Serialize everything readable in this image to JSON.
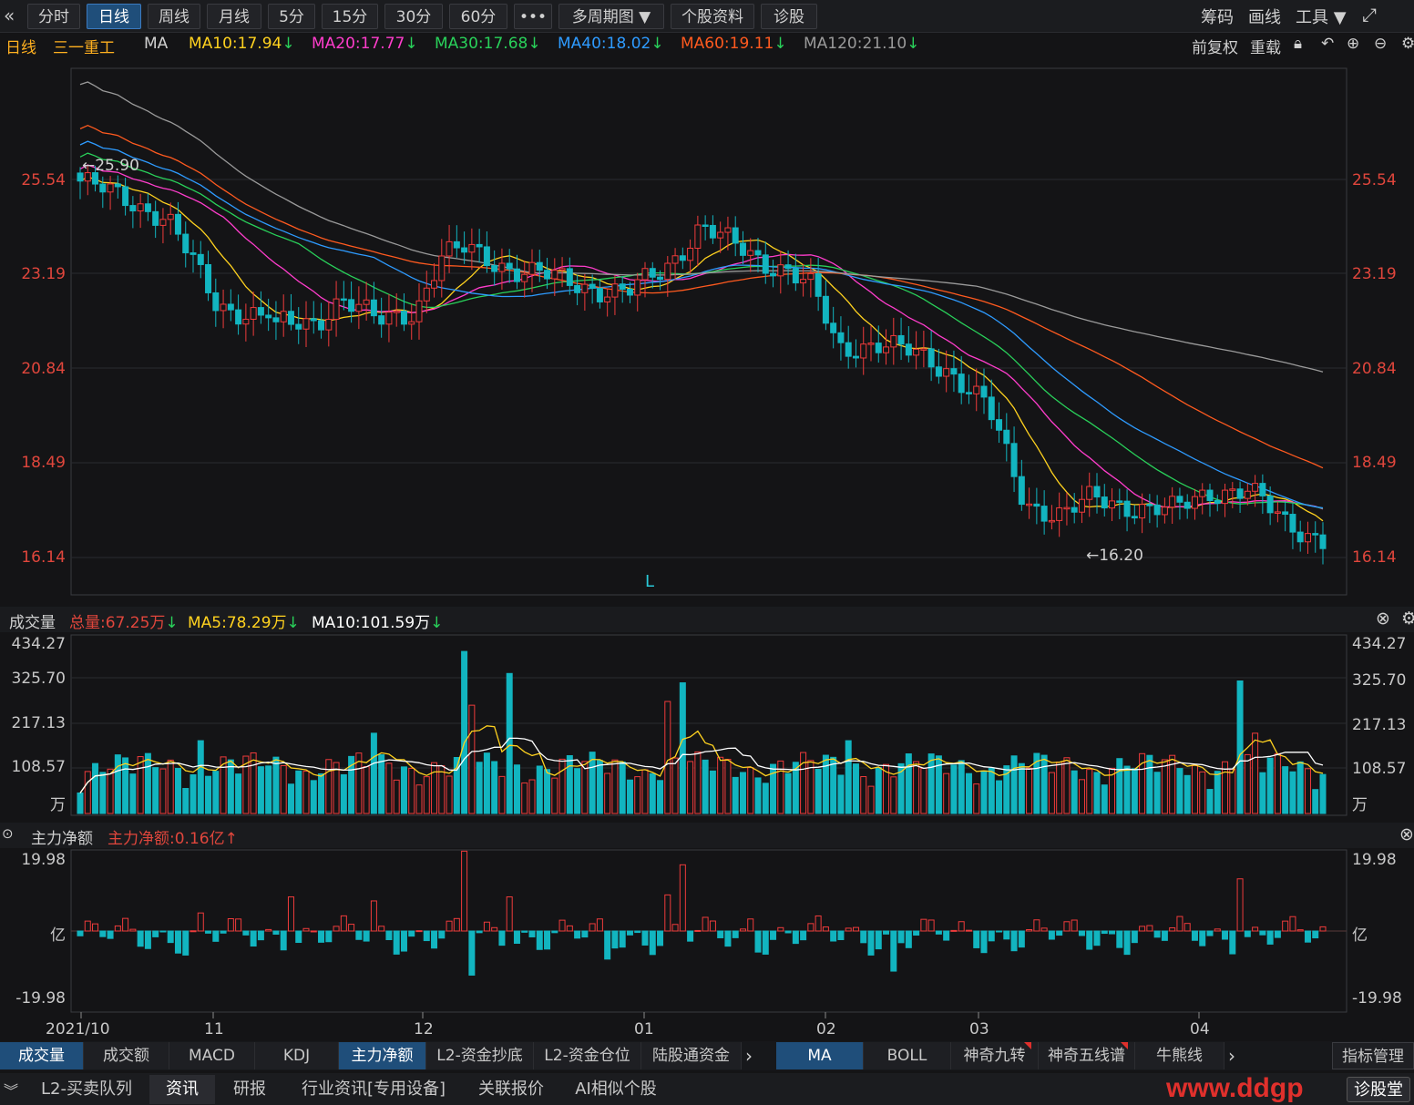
{
  "toolbar": {
    "back_icon": "double-chevron-left-icon",
    "tabs": [
      "分时",
      "日线",
      "周线",
      "月线",
      "5分",
      "15分",
      "30分",
      "60分",
      "•••",
      "多周期图 ▼",
      "个股资料",
      "诊股"
    ],
    "active_tab": "日线",
    "right_items": [
      "筹码",
      "画线",
      "工具 ▼"
    ],
    "expand_icon": "fullscreen-icon"
  },
  "ma_legend": {
    "period": "日线",
    "stock_name": "三一重工",
    "indicator": "MA",
    "items": [
      {
        "label": "MA10:17.94",
        "color": "#ffd21f",
        "arrow": "↓"
      },
      {
        "label": "MA20:17.77",
        "color": "#ff3dcc",
        "arrow": "↓"
      },
      {
        "label": "MA30:17.68",
        "color": "#29d15a",
        "arrow": "↓"
      },
      {
        "label": "MA40:18.02",
        "color": "#2e9bff",
        "arrow": "↓"
      },
      {
        "label": "MA60:19.11",
        "color": "#ff5a1f",
        "arrow": "↓"
      },
      {
        "label": "MA120:21.10",
        "color": "#9a9a9a",
        "arrow": "↓"
      }
    ],
    "right": [
      "前复权",
      "重载"
    ]
  },
  "price_axis": {
    "ticks": [
      "25.54",
      "23.19",
      "20.84",
      "18.49",
      "16.14"
    ],
    "max_label": "←25.90",
    "min_label": "←16.20",
    "marker": "L"
  },
  "volume": {
    "title": "成交量",
    "total": "总量:67.25万",
    "ma5": "MA5:78.29万",
    "ma10": "MA10:101.59万",
    "ticks": [
      "434.27",
      "325.70",
      "217.13",
      "108.57",
      "万"
    ]
  },
  "netflow": {
    "title": "主力净额",
    "value": "主力净额:0.16亿",
    "ticks": [
      "19.98",
      "亿",
      "-19.98"
    ]
  },
  "x_labels": [
    "2021/10",
    "11",
    "12",
    "01",
    "02",
    "03",
    "04"
  ],
  "indicator_tabs": [
    "成交量",
    "成交额",
    "MACD",
    "KDJ",
    "主力净额",
    "L2-资金抄底",
    "L2-资金仓位",
    "陆股通资金"
  ],
  "active_indicator_tabs": [
    "成交量",
    "主力净额"
  ],
  "overlay_tabs": [
    "MA",
    "BOLL",
    "神奇九转",
    "神奇五线谱",
    "牛熊线"
  ],
  "active_overlay": "MA",
  "indicator_manage": "指标管理",
  "news_tabs": [
    "L2-买卖队列",
    "资讯",
    "研报",
    "行业资讯[专用设备]",
    "关联报价",
    "AI相似个股"
  ],
  "active_news": "资讯",
  "diagnose_btn": "诊股堂",
  "watermark": "www.ddgp"
}
